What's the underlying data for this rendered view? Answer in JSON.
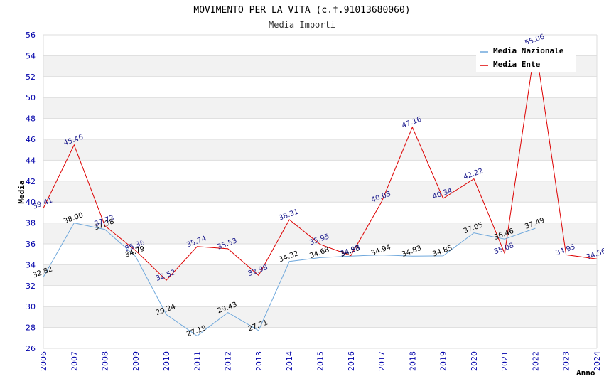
{
  "chart_data": {
    "type": "line",
    "title": "MOVIMENTO PER LA VITA (c.f.91013680060)",
    "subtitle": "Media Importi",
    "xlabel": "Anno",
    "ylabel": "Media",
    "ylim": [
      26,
      56
    ],
    "yticks": [
      "26",
      "28",
      "30",
      "32",
      "34",
      "36",
      "38",
      "40",
      "42",
      "44",
      "46",
      "48",
      "50",
      "52",
      "54",
      "56"
    ],
    "categories": [
      "2006",
      "2007",
      "2008",
      "2009",
      "2010",
      "2011",
      "2012",
      "2013",
      "2014",
      "2015",
      "2016",
      "2017",
      "2018",
      "2019",
      "2020",
      "2021",
      "2022",
      "2023",
      "2024"
    ],
    "series": [
      {
        "name": "Media Nazionale",
        "color": "#6fa8dc",
        "values": [
          32.82,
          38.0,
          37.38,
          34.79,
          29.24,
          27.19,
          29.43,
          27.71,
          34.32,
          34.68,
          34.83,
          34.94,
          34.83,
          34.85,
          37.05,
          36.46,
          37.49,
          null,
          null
        ],
        "labels": [
          "32.82",
          "38.00",
          "37.38",
          "34.79",
          "29.24",
          "27.19",
          "29.43",
          "27.71",
          "34.32",
          "34.68",
          "34.83",
          "34.94",
          "34.83",
          "34.85",
          "37.05",
          "36.46",
          "37.49",
          "",
          ""
        ]
      },
      {
        "name": "Media Ente",
        "color": "#dd0000",
        "values": [
          39.41,
          45.46,
          37.73,
          35.36,
          32.52,
          35.74,
          35.53,
          32.98,
          38.31,
          35.95,
          34.88,
          40.03,
          47.16,
          40.34,
          42.22,
          35.08,
          55.06,
          34.95,
          34.56
        ],
        "labels": [
          "39.41",
          "45.46",
          "37.73",
          "35.36",
          "32.52",
          "35.74",
          "35.53",
          "32.98",
          "38.31",
          "35.95",
          "34.88",
          "40.03",
          "47.16",
          "40.34",
          "42.22",
          "35.08",
          "55.06",
          "34.95",
          "34.56"
        ]
      }
    ],
    "legend": [
      "Media Nazionale",
      "Media Ente"
    ],
    "legend_position": "top-right",
    "grid": true
  }
}
